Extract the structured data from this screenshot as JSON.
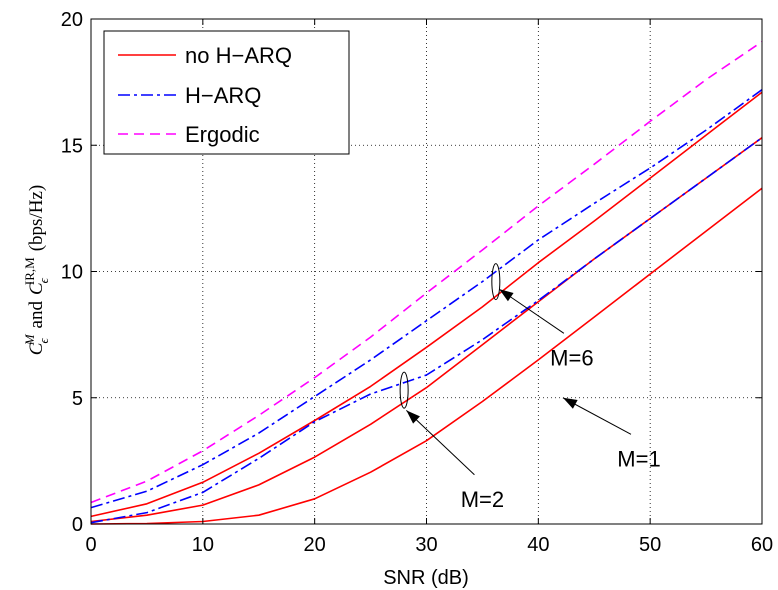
{
  "chart_data": {
    "type": "line",
    "xlabel": "SNR (dB)",
    "ylabel": "C_ε^M and C_ε^{IR,M} (bps/Hz)",
    "ylabel_parts": {
      "c1": "C",
      "eps1": "ϵ",
      "m1": "M",
      "and": "and",
      "c2": "C",
      "eps2": "ϵ",
      "irm": "IR,M",
      "units": "(bps/Hz)"
    },
    "xlim": [
      0,
      60
    ],
    "ylim": [
      0,
      20
    ],
    "xticks": [
      0,
      10,
      20,
      30,
      40,
      50,
      60
    ],
    "yticks": [
      0,
      5,
      10,
      15,
      20
    ],
    "grid": true,
    "legend_position": "top-left",
    "legend": [
      {
        "label": "no H−ARQ",
        "color": "#ff0000",
        "style": "solid"
      },
      {
        "label": "H−ARQ",
        "color": "#0000ff",
        "style": "dashdot"
      },
      {
        "label": "Ergodic",
        "color": "#ff00ff",
        "style": "dashed"
      }
    ],
    "x": [
      0,
      5,
      10,
      15,
      20,
      25,
      30,
      35,
      40,
      45,
      50,
      55,
      60
    ],
    "series": [
      {
        "group": "no H−ARQ",
        "color": "#ff0000",
        "style": "solid",
        "values": [
          0.0,
          0.02,
          0.1,
          0.35,
          1.0,
          2.05,
          3.3,
          4.85,
          6.5,
          8.2,
          9.9,
          11.6,
          13.3
        ]
      },
      {
        "group": "no H−ARQ",
        "color": "#ff0000",
        "style": "solid",
        "values": [
          0.1,
          0.35,
          0.75,
          1.55,
          2.65,
          3.95,
          5.4,
          7.1,
          8.8,
          10.5,
          12.1,
          13.7,
          15.3
        ]
      },
      {
        "group": "no H−ARQ",
        "color": "#ff0000",
        "style": "solid",
        "values": [
          0.3,
          0.8,
          1.65,
          2.8,
          4.1,
          5.45,
          7.0,
          8.6,
          10.35,
          12.0,
          13.7,
          15.4,
          17.1
        ]
      },
      {
        "group": "H−ARQ",
        "color": "#0000ff",
        "style": "dashdot",
        "values": [
          0.05,
          0.45,
          1.25,
          2.6,
          4.05,
          5.15,
          5.9,
          7.3,
          8.85,
          10.5,
          12.1,
          13.7,
          15.3
        ]
      },
      {
        "group": "H−ARQ",
        "color": "#0000ff",
        "style": "dashdot",
        "values": [
          0.65,
          1.3,
          2.35,
          3.6,
          5.05,
          6.5,
          8.05,
          9.6,
          11.25,
          12.7,
          14.1,
          15.6,
          17.2
        ]
      },
      {
        "group": "Ergodic",
        "color": "#ff00ff",
        "style": "dashed",
        "values": [
          0.85,
          1.7,
          2.9,
          4.3,
          5.8,
          7.4,
          9.15,
          10.85,
          12.6,
          14.25,
          15.95,
          17.6,
          19.1
        ]
      }
    ],
    "annotations": [
      {
        "label": "M=6",
        "arrow_to": [
          36.5,
          9.3
        ],
        "text_at": [
          43,
          6.6
        ],
        "ellipse_at": [
          36.2,
          9.6
        ]
      },
      {
        "label": "M=2",
        "arrow_to": [
          28.2,
          4.5
        ],
        "text_at": [
          35,
          1.0
        ],
        "ellipse_at": [
          28.0,
          5.3
        ]
      },
      {
        "label": "M=1",
        "arrow_to": [
          42.2,
          5.0
        ],
        "text_at": [
          49,
          2.6
        ]
      }
    ]
  }
}
